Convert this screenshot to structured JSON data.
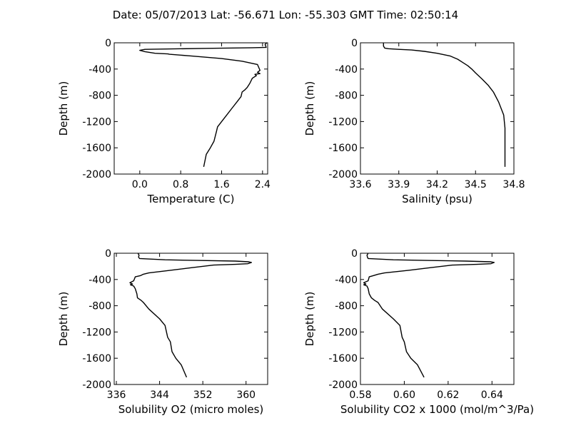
{
  "title": "Date: 05/07/2013  Lat:  -56.671 Lon:  -55.303  GMT Time: 02:50:14",
  "chart_data": [
    {
      "type": "line",
      "xlabel": "Temperature (C)",
      "ylabel": "Depth (m)",
      "xlim": [
        -0.5,
        2.5
      ],
      "ylim": [
        -2000,
        0
      ],
      "xticks": [
        0.0,
        0.8,
        1.6,
        2.4
      ],
      "xtick_labels": [
        "0.0",
        "0.8",
        "1.6",
        "2.4"
      ],
      "yticks": [
        0,
        -400,
        -800,
        -1200,
        -1600,
        -2000
      ],
      "ytick_labels": [
        "0",
        "-400",
        "-800",
        "-1200",
        "-1600",
        "-2000"
      ],
      "series": [
        {
          "x": [
            2.48,
            2.45,
            2.47,
            2.2,
            1.3,
            0.1,
            0.0,
            0.05,
            0.1,
            0.3,
            0.55,
            0.58,
            1.0,
            1.6,
            2.0,
            2.3,
            2.35,
            2.3,
            2.35,
            2.25,
            2.28,
            2.2,
            2.15,
            2.1,
            2.05,
            2.0,
            1.98,
            1.9,
            1.8,
            1.7,
            1.6,
            1.52,
            1.5,
            1.45,
            1.38,
            1.3,
            1.25
          ],
          "y": [
            0,
            -25,
            -70,
            -75,
            -85,
            -100,
            -115,
            -125,
            -135,
            -160,
            -170,
            -175,
            -200,
            -240,
            -280,
            -330,
            -420,
            -450,
            -470,
            -480,
            -500,
            -540,
            -620,
            -680,
            -720,
            -750,
            -820,
            -900,
            -1000,
            -1100,
            -1200,
            -1280,
            -1350,
            -1500,
            -1600,
            -1700,
            -1890
          ]
        }
      ]
    },
    {
      "type": "line",
      "xlabel": "Salinity (psu)",
      "ylabel": "Depth (m)",
      "xlim": [
        33.6,
        34.8
      ],
      "ylim": [
        -2000,
        0
      ],
      "xticks": [
        33.6,
        33.9,
        34.2,
        34.5,
        34.8
      ],
      "xtick_labels": [
        "33.6",
        "33.9",
        "34.2",
        "34.5",
        "34.8"
      ],
      "yticks": [
        0,
        -400,
        -800,
        -1200,
        -1600,
        -2000
      ],
      "ytick_labels": [
        "0",
        "-400",
        "-800",
        "-1200",
        "-1600",
        "-2000"
      ],
      "series": [
        {
          "x": [
            33.78,
            33.78,
            33.79,
            33.82,
            33.9,
            34.0,
            34.1,
            34.2,
            34.3,
            34.36,
            34.4,
            34.44,
            34.47,
            34.5,
            34.55,
            34.6,
            34.64,
            34.68,
            34.7,
            34.72,
            34.725,
            34.73,
            34.73,
            34.73
          ],
          "y": [
            0,
            -50,
            -80,
            -90,
            -100,
            -110,
            -130,
            -160,
            -200,
            -250,
            -300,
            -350,
            -400,
            -460,
            -550,
            -650,
            -750,
            -900,
            -1000,
            -1100,
            -1200,
            -1300,
            -1600,
            -1890
          ]
        }
      ]
    },
    {
      "type": "line",
      "xlabel": "Solubility O2 (micro moles)",
      "ylabel": "Depth (m)",
      "xlim": [
        335.6,
        364
      ],
      "ylim": [
        -2000,
        0
      ],
      "xticks": [
        336,
        344,
        352,
        360
      ],
      "xtick_labels": [
        "336",
        "344",
        "352",
        "360"
      ],
      "yticks": [
        0,
        -400,
        -800,
        -1200,
        -1600,
        -2000
      ],
      "ytick_labels": [
        "0",
        "-400",
        "-800",
        "-1200",
        "-1600",
        "-2000"
      ],
      "series": [
        {
          "x": [
            340.0,
            340.2,
            340.1,
            340.3,
            345.0,
            351.0,
            358.0,
            360.5,
            361.0,
            360.3,
            358.0,
            354.0,
            350.0,
            346.0,
            342.0,
            341.0,
            340.5,
            339.5,
            339.2,
            338.5,
            339.0,
            338.6,
            339.2,
            339.5,
            339.8,
            339.9,
            340.6,
            341.0,
            342.0,
            344.0,
            345.0,
            345.5,
            346.0,
            346.3,
            347.0,
            348.0,
            349.0
          ],
          "y": [
            0,
            -30,
            -60,
            -80,
            -100,
            -110,
            -120,
            -130,
            -140,
            -160,
            -170,
            -180,
            -220,
            -260,
            -300,
            -320,
            -340,
            -360,
            -420,
            -450,
            -470,
            -480,
            -500,
            -540,
            -620,
            -680,
            -720,
            -750,
            -850,
            -1000,
            -1100,
            -1280,
            -1350,
            -1500,
            -1600,
            -1700,
            -1890
          ]
        }
      ]
    },
    {
      "type": "line",
      "xlabel": "Solubility CO2 x 1000 (mol/m^3/Pa)",
      "ylabel": "Depth (m)",
      "xlim": [
        0.58,
        0.65
      ],
      "ylim": [
        -2000,
        0
      ],
      "xticks": [
        0.58,
        0.6,
        0.62,
        0.64
      ],
      "xtick_labels": [
        "0.58",
        "0.60",
        "0.62",
        "0.64"
      ],
      "yticks": [
        0,
        -400,
        -800,
        -1200,
        -1600,
        -2000
      ],
      "ytick_labels": [
        "0",
        "-400",
        "-800",
        "-1200",
        "-1600",
        "-2000"
      ],
      "series": [
        {
          "x": [
            0.5835,
            0.583,
            0.5832,
            0.5835,
            0.595,
            0.61,
            0.628,
            0.6395,
            0.641,
            0.6395,
            0.633,
            0.622,
            0.612,
            0.602,
            0.591,
            0.588,
            0.586,
            0.584,
            0.5835,
            0.5815,
            0.5825,
            0.5815,
            0.583,
            0.5835,
            0.584,
            0.585,
            0.5865,
            0.588,
            0.59,
            0.595,
            0.598,
            0.599,
            0.6,
            0.601,
            0.603,
            0.606,
            0.609
          ],
          "y": [
            0,
            -30,
            -60,
            -80,
            -100,
            -110,
            -120,
            -130,
            -140,
            -160,
            -170,
            -180,
            -220,
            -260,
            -300,
            -320,
            -340,
            -360,
            -420,
            -450,
            -470,
            -480,
            -500,
            -540,
            -620,
            -680,
            -720,
            -750,
            -850,
            -1000,
            -1100,
            -1280,
            -1350,
            -1500,
            -1600,
            -1700,
            -1890
          ]
        }
      ]
    }
  ]
}
